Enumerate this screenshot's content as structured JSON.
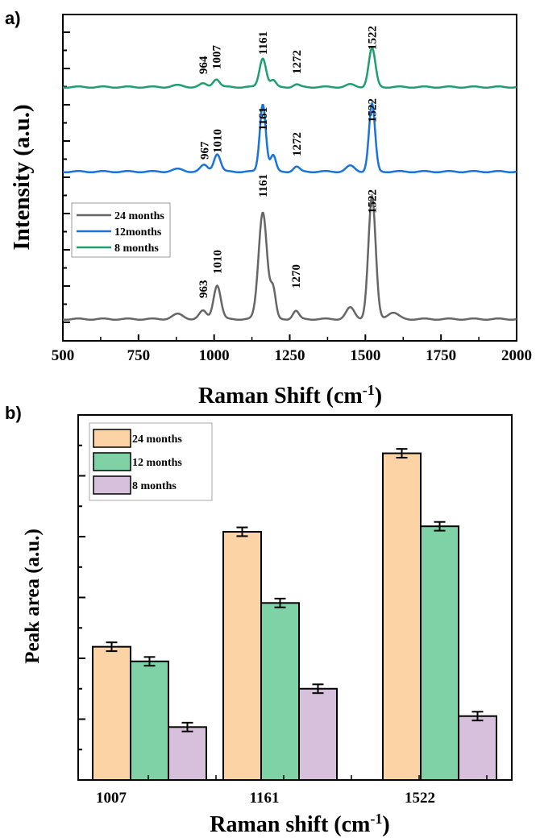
{
  "panel_a_label": "a)",
  "panel_b_label": "b)",
  "colors": {
    "24 months": "#666666",
    "12 months": "#1a73d9",
    "8 months": "#1f9e6e",
    "bar_24": "#fcd3a4",
    "bar_12": "#7ed2a6",
    "bar_8": "#d6c0dc"
  },
  "chart_data": [
    {
      "type": "line",
      "xlabel": "Raman Shift (cm",
      "xlabel_sup": "-1",
      "xlabel_end": ")",
      "ylabel": "Intensity (a.u.)",
      "xlim": [
        500,
        2000
      ],
      "x_ticks": [
        500,
        750,
        1000,
        1250,
        1500,
        1750,
        2000
      ],
      "legend_position": "middle-left",
      "legend": [
        "24 months",
        "12months",
        "8 months"
      ],
      "series": [
        {
          "name": "24 months",
          "color_key": "24 months",
          "peak_labels": [
            {
              "x": 963,
              "label": "963"
            },
            {
              "x": 1010,
              "label": "1010"
            },
            {
              "x": 1161,
              "label": "1161"
            },
            {
              "x": 1270,
              "label": "1270"
            },
            {
              "x": 1522,
              "label": "1522"
            }
          ]
        },
        {
          "name": "12months",
          "color_key": "12 months",
          "peak_labels": [
            {
              "x": 967,
              "label": "967"
            },
            {
              "x": 1010,
              "label": "1010"
            },
            {
              "x": 1161,
              "label": "1161"
            },
            {
              "x": 1272,
              "label": "1272"
            },
            {
              "x": 1522,
              "label": "1522"
            }
          ]
        },
        {
          "name": "8 months",
          "color_key": "8 months",
          "peak_labels": [
            {
              "x": 964,
              "label": "964"
            },
            {
              "x": 1007,
              "label": "1007"
            },
            {
              "x": 1161,
              "label": "1161"
            },
            {
              "x": 1272,
              "label": "1272"
            },
            {
              "x": 1522,
              "label": "1522"
            }
          ]
        }
      ]
    },
    {
      "type": "bar",
      "xlabel": "Raman shift (cm",
      "xlabel_sup": "-1",
      "xlabel_end": ")",
      "ylabel": "Peak area (a.u.)",
      "categories": [
        "1007",
        "1161",
        "1522"
      ],
      "legend_position": "top-left",
      "ylim": [
        0,
        10
      ],
      "series": [
        {
          "name": "24 months",
          "color_key": "bar_24",
          "values": [
            3.65,
            6.8,
            8.95
          ],
          "errors": [
            0.12,
            0.12,
            0.12
          ]
        },
        {
          "name": "12 months",
          "color_key": "bar_12",
          "values": [
            3.25,
            4.85,
            6.95
          ],
          "errors": [
            0.12,
            0.12,
            0.12
          ]
        },
        {
          "name": "8 months",
          "color_key": "bar_8",
          "values": [
            1.45,
            2.5,
            1.75
          ],
          "errors": [
            0.12,
            0.12,
            0.12
          ]
        }
      ]
    }
  ]
}
